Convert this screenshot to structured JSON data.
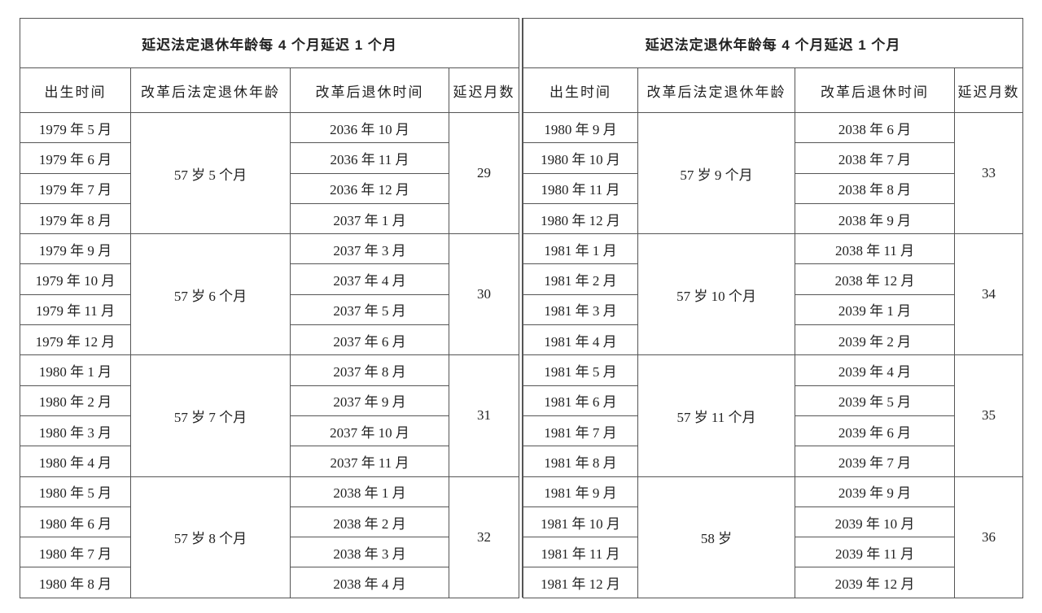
{
  "left": {
    "title": "延迟法定退休年龄每 4 个月延迟 1 个月",
    "headers": [
      "出生时间",
      "改革后法定退休年龄",
      "改革后退休时间",
      "延迟月数"
    ],
    "groups": [
      {
        "age": "57 岁 5 个月",
        "delay": "29",
        "rows": [
          {
            "birth": "1979 年 5 月",
            "retire": "2036 年 10 月"
          },
          {
            "birth": "1979 年 6 月",
            "retire": "2036 年 11 月"
          },
          {
            "birth": "1979 年 7 月",
            "retire": "2036 年 12 月"
          },
          {
            "birth": "1979 年 8 月",
            "retire": "2037 年 1 月"
          }
        ]
      },
      {
        "age": "57 岁 6 个月",
        "delay": "30",
        "rows": [
          {
            "birth": "1979 年 9 月",
            "retire": "2037 年 3 月"
          },
          {
            "birth": "1979 年 10 月",
            "retire": "2037 年 4 月"
          },
          {
            "birth": "1979 年 11 月",
            "retire": "2037 年 5 月"
          },
          {
            "birth": "1979 年 12 月",
            "retire": "2037 年 6 月"
          }
        ]
      },
      {
        "age": "57 岁 7 个月",
        "delay": "31",
        "rows": [
          {
            "birth": "1980 年 1 月",
            "retire": "2037 年 8 月"
          },
          {
            "birth": "1980 年 2 月",
            "retire": "2037 年 9 月"
          },
          {
            "birth": "1980 年 3 月",
            "retire": "2037 年 10 月"
          },
          {
            "birth": "1980 年 4 月",
            "retire": "2037 年 11 月"
          }
        ]
      },
      {
        "age": "57 岁 8 个月",
        "delay": "32",
        "rows": [
          {
            "birth": "1980 年 5 月",
            "retire": "2038 年 1 月"
          },
          {
            "birth": "1980 年 6 月",
            "retire": "2038 年 2 月"
          },
          {
            "birth": "1980 年 7 月",
            "retire": "2038 年 3 月"
          },
          {
            "birth": "1980 年 8 月",
            "retire": "2038 年 4 月"
          }
        ]
      }
    ]
  },
  "right": {
    "title": "延迟法定退休年龄每 4 个月延迟 1 个月",
    "headers": [
      "出生时间",
      "改革后法定退休年龄",
      "改革后退休时间",
      "延迟月数"
    ],
    "groups": [
      {
        "age": "57 岁 9 个月",
        "delay": "33",
        "rows": [
          {
            "birth": "1980 年 9 月",
            "retire": "2038 年 6 月"
          },
          {
            "birth": "1980 年 10 月",
            "retire": "2038 年 7 月"
          },
          {
            "birth": "1980 年 11 月",
            "retire": "2038 年 8 月"
          },
          {
            "birth": "1980 年 12 月",
            "retire": "2038 年 9 月"
          }
        ]
      },
      {
        "age": "57 岁 10 个月",
        "delay": "34",
        "rows": [
          {
            "birth": "1981 年 1 月",
            "retire": "2038 年 11 月"
          },
          {
            "birth": "1981 年 2 月",
            "retire": "2038 年 12 月"
          },
          {
            "birth": "1981 年 3 月",
            "retire": "2039 年 1 月"
          },
          {
            "birth": "1981 年 4 月",
            "retire": "2039 年 2 月"
          }
        ]
      },
      {
        "age": "57 岁 11 个月",
        "delay": "35",
        "rows": [
          {
            "birth": "1981 年 5 月",
            "retire": "2039 年 4 月"
          },
          {
            "birth": "1981 年 6 月",
            "retire": "2039 年 5 月"
          },
          {
            "birth": "1981 年 7 月",
            "retire": "2039 年 6 月"
          },
          {
            "birth": "1981 年 8 月",
            "retire": "2039 年 7 月"
          }
        ]
      },
      {
        "age": "58 岁",
        "delay": "36",
        "rows": [
          {
            "birth": "1981 年 9 月",
            "retire": "2039 年 9 月"
          },
          {
            "birth": "1981 年 10 月",
            "retire": "2039 年 10 月"
          },
          {
            "birth": "1981 年 11 月",
            "retire": "2039 年 11 月"
          },
          {
            "birth": "1981 年 12 月",
            "retire": "2039 年 12 月"
          }
        ]
      }
    ]
  }
}
